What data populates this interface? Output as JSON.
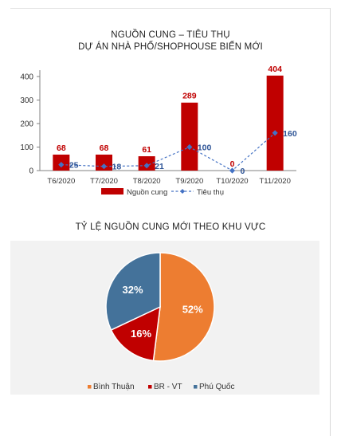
{
  "bar_title_line1": "NGUỒN CUNG – TIÊU THỤ",
  "bar_title_line2": "DỰ ÁN NHÀ PHỐ/SHOPHOUSE BIỂN MỚI",
  "pie_title": "TỶ LỆ NGUỒN CUNG MỚI THEO KHU VỰC",
  "chart_data": [
    {
      "type": "bar",
      "title": "NGUỒN CUNG – TIÊU THỤ DỰ ÁN NHÀ PHỐ/SHOPHOUSE BIỂN MỚI",
      "categories": [
        "T6/2020",
        "T7/2020",
        "T8/2020",
        "T9/2020",
        "T10/2020",
        "T11/2020"
      ],
      "ylim": [
        0,
        400
      ],
      "yticks": [
        "0",
        "100",
        "200",
        "300",
        "400"
      ],
      "grid": false,
      "legend": "bottom",
      "series": [
        {
          "name": "Nguồn cung",
          "type": "bar",
          "color": "#c00000",
          "values": [
            68,
            68,
            61,
            289,
            0,
            404
          ]
        },
        {
          "name": "Tiêu thụ",
          "type": "line",
          "style": "dashed",
          "marker": "diamond",
          "color": "#4472c4",
          "values": [
            25,
            18,
            21,
            100,
            0,
            160
          ]
        }
      ]
    },
    {
      "type": "pie",
      "title": "TỶ LỆ NGUỒN CUNG MỚI THEO KHU VỰC",
      "legend": "bottom",
      "slices": [
        {
          "label": "Bình Thuận",
          "value": 52,
          "display": "52%",
          "color": "#ed7d31"
        },
        {
          "label": "BR - VT",
          "value": 16,
          "display": "16%",
          "color": "#c00000"
        },
        {
          "label": "Phú Quốc",
          "value": 32,
          "display": "32%",
          "color": "#44729a"
        }
      ]
    }
  ]
}
